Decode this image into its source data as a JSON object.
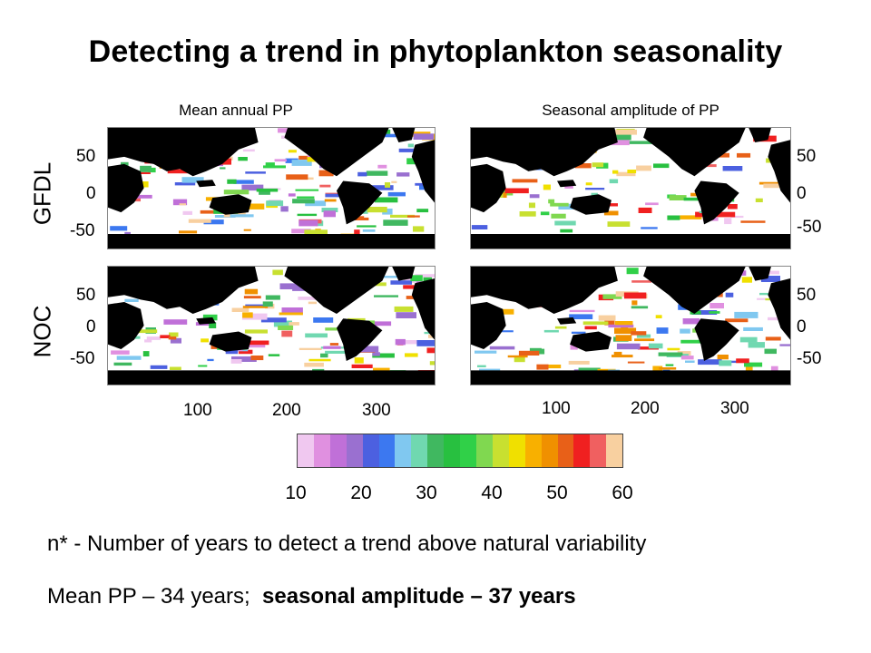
{
  "title": "Detecting a trend in phytoplankton seasonality",
  "columns": {
    "left": "Mean annual PP",
    "right": "Seasonal amplitude of PP"
  },
  "rows": {
    "top": "GFDL",
    "bottom": "NOC"
  },
  "lat_ticks": [
    "50",
    "0",
    "-50"
  ],
  "lon_ticks": [
    "100",
    "200",
    "300"
  ],
  "colorbar": {
    "colors": [
      "#f0c8f0",
      "#e090e0",
      "#c070d8",
      "#9a70d0",
      "#4c60e0",
      "#3c78f0",
      "#80c8f0",
      "#70d8b0",
      "#40b860",
      "#28c040",
      "#30d048",
      "#80d850",
      "#c8e030",
      "#f0e000",
      "#f8b000",
      "#f09000",
      "#e86018",
      "#f02020",
      "#f06060",
      "#f8d0a0"
    ],
    "ticks": [
      "10",
      "20",
      "30",
      "40",
      "50",
      "60"
    ]
  },
  "footer": {
    "line1": "n* - Number of years to detect a trend above natural variability",
    "line2_plain": "Mean PP – 34 years;",
    "line2_bold": "seasonal amplitude – 37 years"
  },
  "landmass_color": "#000000"
}
